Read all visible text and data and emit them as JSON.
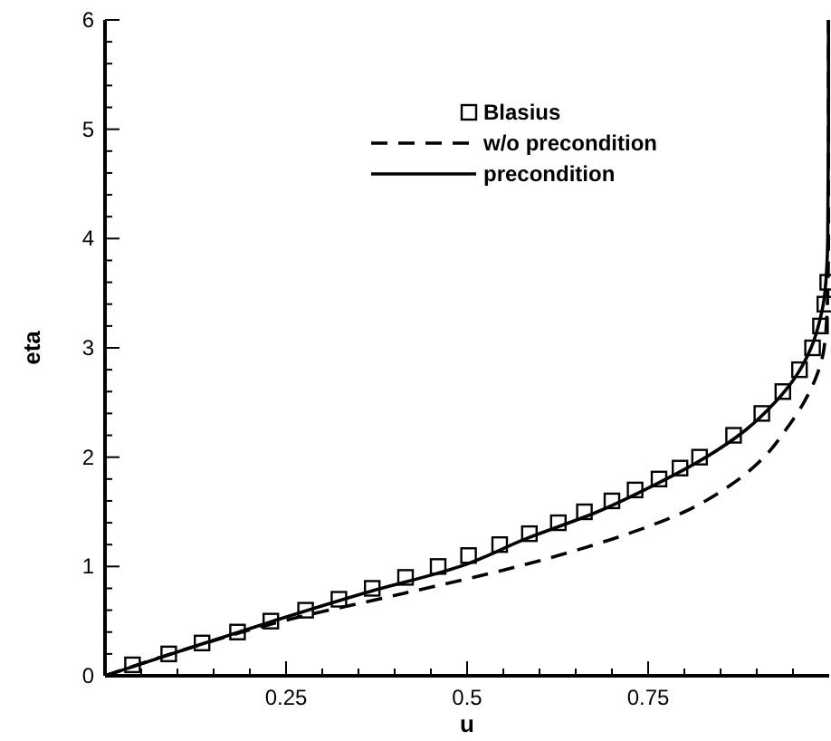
{
  "chart_data": {
    "type": "line",
    "xlabel": "u",
    "ylabel": "eta",
    "xlim": [
      0,
      1
    ],
    "ylim": [
      0,
      6
    ],
    "xticks": [
      {
        "value": 0.05,
        "label": null
      },
      {
        "value": 0.1,
        "label": null
      },
      {
        "value": 0.15,
        "label": null
      },
      {
        "value": 0.2,
        "label": null
      },
      0.25,
      {
        "value": 0.3,
        "label": null
      },
      {
        "value": 0.35,
        "label": null
      },
      {
        "value": 0.4,
        "label": null
      },
      {
        "value": 0.45,
        "label": null
      },
      0.5,
      {
        "value": 0.55,
        "label": null
      },
      {
        "value": 0.6,
        "label": null
      },
      {
        "value": 0.65,
        "label": null
      },
      {
        "value": 0.7,
        "label": null
      },
      0.75,
      {
        "value": 0.8,
        "label": null
      },
      {
        "value": 0.85,
        "label": null
      },
      {
        "value": 0.9,
        "label": null
      },
      {
        "value": 0.95,
        "label": null
      }
    ],
    "yticks": [
      0,
      {
        "value": 0.2,
        "label": null
      },
      {
        "value": 0.4,
        "label": null
      },
      {
        "value": 0.6,
        "label": null
      },
      {
        "value": 0.8,
        "label": null
      },
      1,
      {
        "value": 1.2,
        "label": null
      },
      {
        "value": 1.4,
        "label": null
      },
      {
        "value": 1.6,
        "label": null
      },
      {
        "value": 1.8,
        "label": null
      },
      2,
      {
        "value": 2.2,
        "label": null
      },
      {
        "value": 2.4,
        "label": null
      },
      {
        "value": 2.6,
        "label": null
      },
      {
        "value": 2.8,
        "label": null
      },
      3,
      {
        "value": 3.2,
        "label": null
      },
      {
        "value": 3.4,
        "label": null
      },
      {
        "value": 3.6,
        "label": null
      },
      {
        "value": 3.8,
        "label": null
      },
      4,
      {
        "value": 4.2,
        "label": null
      },
      {
        "value": 4.4,
        "label": null
      },
      {
        "value": 4.6,
        "label": null
      },
      {
        "value": 4.8,
        "label": null
      },
      5,
      {
        "value": 5.2,
        "label": null
      },
      {
        "value": 5.4,
        "label": null
      },
      {
        "value": 5.6,
        "label": null
      },
      {
        "value": 5.8,
        "label": null
      },
      6
    ],
    "grid": false,
    "legend": "top",
    "series": [
      {
        "name": "Blasius",
        "type": "scatter",
        "marker": "square",
        "color": "#000000",
        "x": [
          0.038,
          0.088,
          0.134,
          0.183,
          0.229,
          0.277,
          0.323,
          0.369,
          0.415,
          0.46,
          0.502,
          0.545,
          0.586,
          0.626,
          0.662,
          0.7,
          0.732,
          0.765,
          0.794,
          0.821,
          0.868,
          0.907,
          0.936,
          0.959,
          0.977,
          0.988,
          0.994,
          0.998
        ],
        "values": [
          0.1,
          0.2,
          0.3,
          0.4,
          0.5,
          0.6,
          0.7,
          0.8,
          0.9,
          1.0,
          1.1,
          1.2,
          1.3,
          1.4,
          1.5,
          1.6,
          1.7,
          1.8,
          1.9,
          2.0,
          2.2,
          2.4,
          2.6,
          2.8,
          3.0,
          3.2,
          3.4,
          3.6
        ]
      },
      {
        "name": "w/o precondition",
        "type": "line",
        "line_style": "dashed",
        "marker": "none",
        "color": "#000000",
        "x": [
          0,
          0.115,
          0.245,
          0.41,
          0.57,
          0.7,
          0.8,
          0.865,
          0.91,
          0.94,
          0.965,
          0.983,
          0.993,
          0.998,
          0.999,
          0.999
        ],
        "values": [
          0,
          0.25,
          0.5,
          0.75,
          1,
          1.25,
          1.5,
          1.75,
          2,
          2.25,
          2.5,
          2.75,
          3,
          3.5,
          4,
          6
        ]
      },
      {
        "name": "precondition",
        "type": "line",
        "line_style": "solid",
        "marker": "none",
        "color": "#000000",
        "x": [
          0,
          0.115,
          0.232,
          0.355,
          0.49,
          0.58,
          0.68,
          0.76,
          0.83,
          0.885,
          0.925,
          0.955,
          0.975,
          0.987,
          0.994,
          0.998,
          0.999,
          0.999
        ],
        "values": [
          0,
          0.25,
          0.5,
          0.75,
          1,
          1.25,
          1.5,
          1.75,
          2,
          2.25,
          2.5,
          2.75,
          3,
          3.25,
          3.5,
          4,
          5,
          6
        ]
      }
    ]
  }
}
